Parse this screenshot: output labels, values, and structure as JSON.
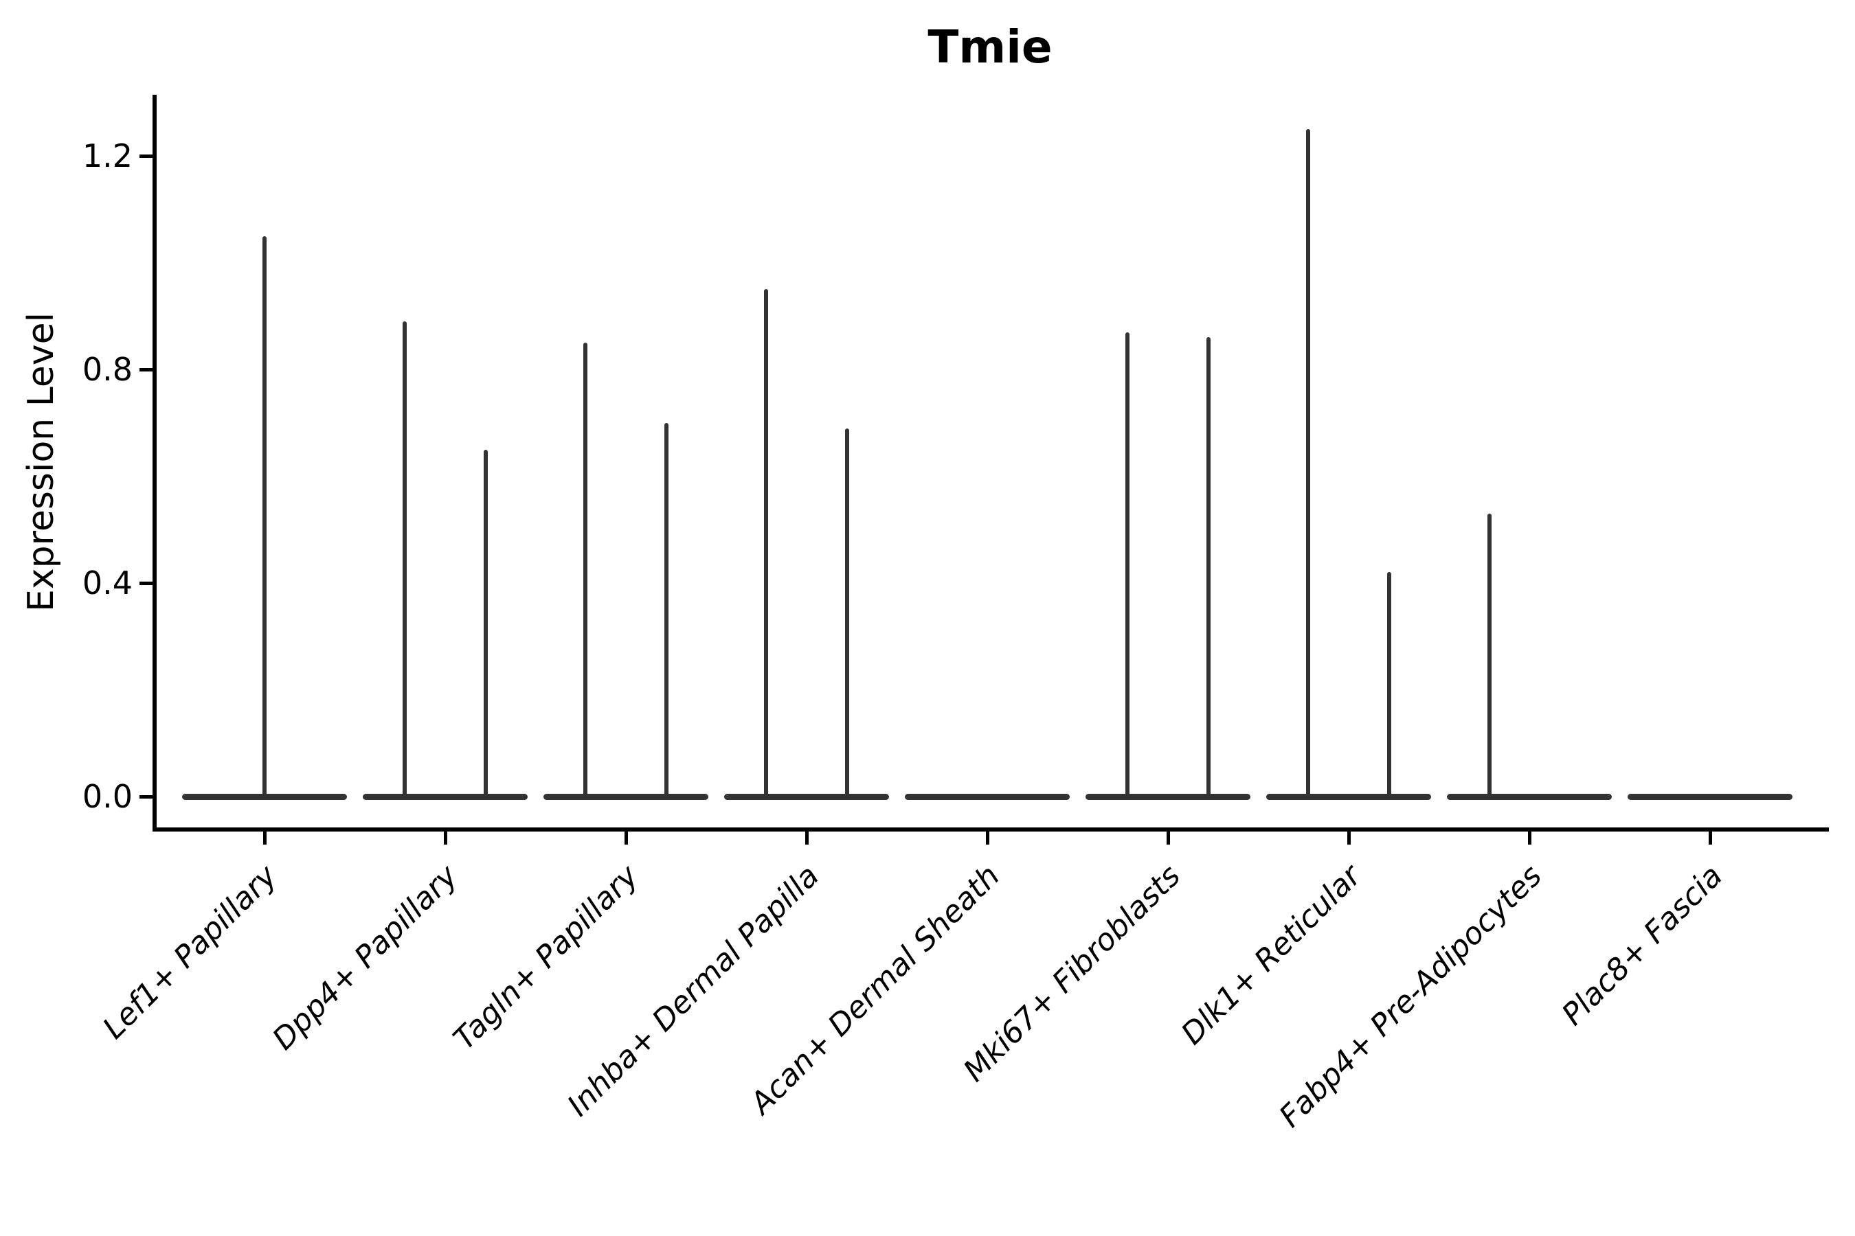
{
  "background": "#ffffff",
  "axis_color": "#000000",
  "violin_color": "#333333",
  "chart_data": {
    "type": "violin",
    "title": "Tmie",
    "xlabel": "",
    "ylabel": "Expression Level",
    "grid": false,
    "legend": "none",
    "ylim": [
      -0.07,
      1.33
    ],
    "y_ticks": [
      0.0,
      0.4,
      0.8,
      1.2
    ],
    "y_tick_labels": [
      "0.0",
      "0.4",
      "0.8",
      "1.2"
    ],
    "x_tick_rotation_deg": 45,
    "categories": [
      "Lef1+ Papillary",
      "Dpp4+ Papillary",
      "Tagln+ Papillary",
      "Inhba+ Dermal Papilla",
      "Acan+ Dermal Sheath",
      "Mki67+ Fibroblasts",
      "Dlk1+ Reticular",
      "Fabp4+ Pre-Adipocytes",
      "Plac8+ Fascia"
    ],
    "violins": [
      {
        "category": "Lef1+ Papillary",
        "base_value": 0.0,
        "max_expression": 1.05,
        "spikes": [
          {
            "x_offset": 0.0,
            "value": 1.05
          }
        ]
      },
      {
        "category": "Dpp4+ Papillary",
        "base_value": 0.0,
        "max_expression": 0.89,
        "spikes": [
          {
            "x_offset": -0.225,
            "value": 0.89
          },
          {
            "x_offset": 0.225,
            "value": 0.65
          }
        ]
      },
      {
        "category": "Tagln+ Papillary",
        "base_value": 0.0,
        "max_expression": 0.85,
        "spikes": [
          {
            "x_offset": -0.225,
            "value": 0.85
          },
          {
            "x_offset": 0.225,
            "value": 0.7
          }
        ]
      },
      {
        "category": "Inhba+ Dermal Papilla",
        "base_value": 0.0,
        "max_expression": 0.95,
        "spikes": [
          {
            "x_offset": -0.225,
            "value": 0.95
          },
          {
            "x_offset": 0.225,
            "value": 0.69
          }
        ]
      },
      {
        "category": "Acan+ Dermal Sheath",
        "base_value": 0.0,
        "max_expression": 0.0,
        "spikes": []
      },
      {
        "category": "Mki67+ Fibroblasts",
        "base_value": 0.0,
        "max_expression": 0.87,
        "spikes": [
          {
            "x_offset": -0.225,
            "value": 0.87
          },
          {
            "x_offset": 0.225,
            "value": 0.86
          }
        ]
      },
      {
        "category": "Dlk1+ Reticular",
        "base_value": 0.0,
        "max_expression": 1.25,
        "spikes": [
          {
            "x_offset": -0.225,
            "value": 1.25
          },
          {
            "x_offset": 0.225,
            "value": 0.42
          }
        ]
      },
      {
        "category": "Fabp4+ Pre-Adipocytes",
        "base_value": 0.0,
        "max_expression": 0.53,
        "spikes": [
          {
            "x_offset": -0.22,
            "value": 0.53
          }
        ]
      },
      {
        "category": "Plac8+ Fascia",
        "base_value": 0.0,
        "max_expression": 0.0,
        "spikes": []
      }
    ]
  }
}
